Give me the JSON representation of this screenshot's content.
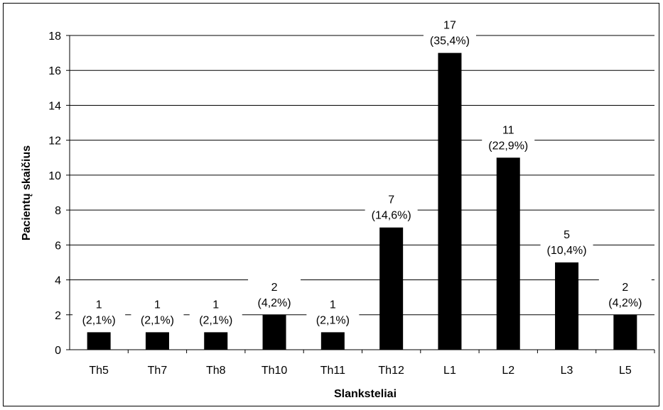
{
  "chart_data": {
    "type": "bar",
    "categories": [
      "Th5",
      "Th7",
      "Th8",
      "Th10",
      "Th11",
      "Th12",
      "L1",
      "L2",
      "L3",
      "L5"
    ],
    "values": [
      1,
      1,
      1,
      2,
      1,
      7,
      17,
      11,
      5,
      2
    ],
    "data_labels": [
      [
        "1",
        "(2,1%)"
      ],
      [
        "1",
        "(2,1%)"
      ],
      [
        "1",
        "(2,1%)"
      ],
      [
        "2",
        "(4,2%)"
      ],
      [
        "1",
        "(2,1%)"
      ],
      [
        "7",
        "(14,6%)"
      ],
      [
        "17",
        "(35,4%)"
      ],
      [
        "11",
        "(22,9%)"
      ],
      [
        "5",
        "(10,4%)"
      ],
      [
        "2",
        "(4,2%)"
      ]
    ],
    "xlabel": "Slanksteliai",
    "ylabel": "Pacientų skaičius",
    "ylim": [
      0,
      18
    ],
    "yticks": [
      "0",
      "2",
      "4",
      "6",
      "8",
      "10",
      "12",
      "14",
      "16",
      "18"
    ],
    "grid": true,
    "legend": "none",
    "bar_color": "#000000",
    "grid_color": "#000000"
  }
}
